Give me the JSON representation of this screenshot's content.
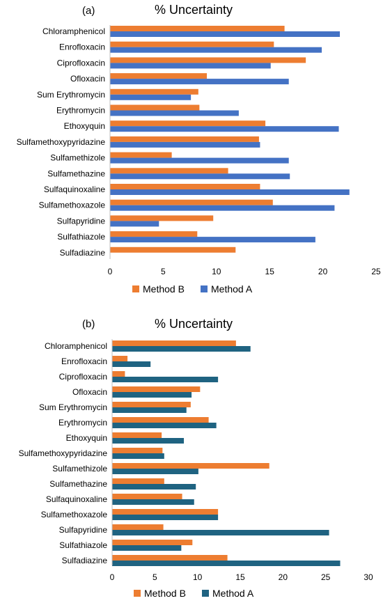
{
  "chart_data": [
    {
      "type": "bar",
      "orientation": "horizontal",
      "panel_label": "(a)",
      "title": "% Uncertainty",
      "categories": [
        "Chloramphenicol",
        "Enrofloxacin",
        "Ciprofloxacin",
        "Ofloxacin",
        "Sum Erythromycin",
        "Erythromycin",
        "Ethoxyquin",
        "Sulfamethoxypyridazine",
        "Sulfamethizole",
        "Sulfamethazine",
        "Sulfaquinoxaline",
        "Sulfamethoxazole",
        "Sulfapyridine",
        "Sulfathiazole",
        "Sulfadiazine"
      ],
      "series": [
        {
          "name": "Method B",
          "color": "#ED7D31",
          "values": [
            16.4,
            15.4,
            18.4,
            9.1,
            8.3,
            8.4,
            14.6,
            14.0,
            5.8,
            11.1,
            14.1,
            15.3,
            9.7,
            8.2,
            11.8
          ]
        },
        {
          "name": "Method A",
          "color": "#4472C4",
          "values": [
            21.6,
            19.9,
            15.1,
            16.8,
            7.6,
            12.1,
            21.5,
            14.1,
            16.8,
            16.9,
            22.5,
            21.1,
            4.6,
            19.3,
            0
          ]
        }
      ],
      "xlim": [
        0,
        25
      ],
      "xticks": [
        0,
        5,
        10,
        15,
        20,
        25
      ],
      "xlabel": "",
      "ylabel": "",
      "grid": false,
      "legend_position": "bottom"
    },
    {
      "type": "bar",
      "orientation": "horizontal",
      "panel_label": "(b)",
      "title": "% Uncertainty",
      "categories": [
        "Chloramphenicol",
        "Enrofloxacin",
        "Ciprofloxacin",
        "Ofloxacin",
        "Sum Erythromycin",
        "Erythromycin",
        "Ethoxyquin",
        "Sulfamethoxypyridazine",
        "Sulfamethizole",
        "Sulfamethazine",
        "Sulfaquinoxaline",
        "Sulfamethoxazole",
        "Sulfapyridine",
        "Sulfathiazole",
        "Sulfadiazine"
      ],
      "series": [
        {
          "name": "Method B",
          "color": "#ED7D31",
          "values": [
            14.5,
            1.8,
            1.5,
            10.3,
            9.2,
            11.3,
            5.8,
            5.9,
            18.4,
            6.1,
            8.2,
            12.4,
            6.0,
            9.4,
            13.5
          ]
        },
        {
          "name": "Method A",
          "color": "#1F6381",
          "values": [
            16.2,
            4.5,
            12.4,
            9.3,
            8.7,
            12.2,
            8.4,
            6.1,
            10.1,
            9.8,
            9.6,
            12.4,
            25.4,
            8.1,
            26.7
          ]
        }
      ],
      "xlim": [
        0,
        30
      ],
      "xticks": [
        0,
        5,
        10,
        15,
        20,
        25,
        30
      ],
      "xlabel": "",
      "ylabel": "",
      "grid": false,
      "legend_position": "bottom"
    }
  ]
}
